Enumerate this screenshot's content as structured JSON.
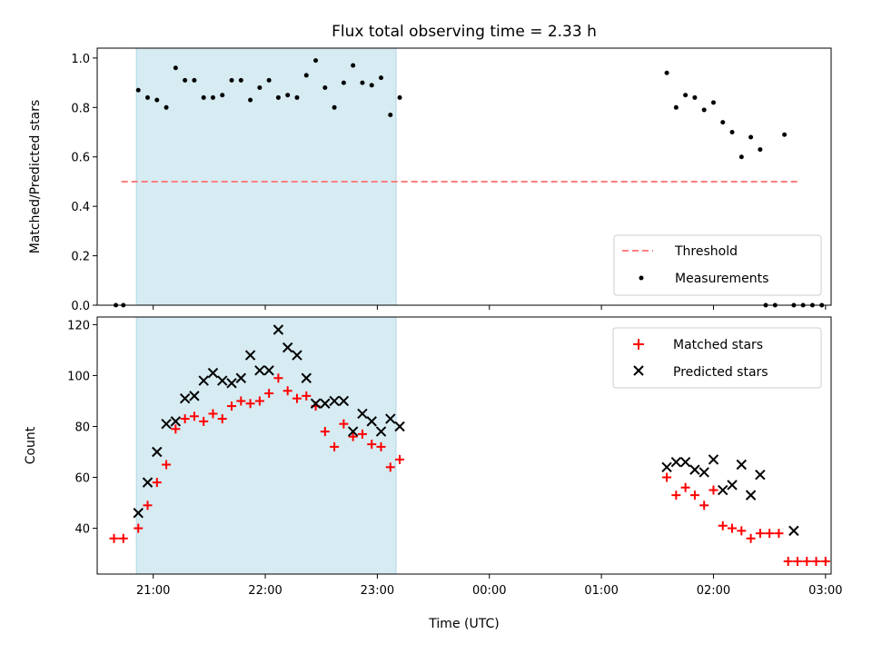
{
  "chart_data": [
    {
      "type": "scatter",
      "title": "Flux total observing time = 2.33 h",
      "xlabel": "",
      "ylabel": "Matched/Predicted stars",
      "xlim": [
        "20:30",
        "03:03"
      ],
      "ylim": [
        0,
        1.04
      ],
      "yticks": [
        "0.0",
        "0.2",
        "0.4",
        "0.6",
        "0.8",
        "1.0"
      ],
      "shaded_span": [
        "20:51",
        "23:10"
      ],
      "threshold": {
        "name": "Threshold",
        "y": 0.5,
        "x_start": "20:43",
        "x_end": "02:45",
        "color": "#ff7f7f",
        "style": "dashed"
      },
      "series": [
        {
          "name": "Measurements",
          "marker": "dot",
          "color": "#000000",
          "x": [
            "20:40",
            "20:44",
            "20:52",
            "20:57",
            "21:02",
            "21:07",
            "21:12",
            "21:17",
            "21:22",
            "21:27",
            "21:32",
            "21:37",
            "21:42",
            "21:47",
            "21:52",
            "21:57",
            "22:02",
            "22:07",
            "22:12",
            "22:17",
            "22:22",
            "22:27",
            "22:32",
            "22:37",
            "22:42",
            "22:47",
            "22:52",
            "22:57",
            "23:02",
            "23:07",
            "23:12",
            "01:35",
            "01:40",
            "01:45",
            "01:50",
            "01:55",
            "02:00",
            "02:05",
            "02:10",
            "02:15",
            "02:20",
            "02:25",
            "02:28",
            "02:33",
            "02:38",
            "02:43",
            "02:48",
            "02:53",
            "02:58"
          ],
          "y": [
            0,
            0,
            0.87,
            0.84,
            0.83,
            0.8,
            0.96,
            0.91,
            0.91,
            0.84,
            0.84,
            0.85,
            0.91,
            0.91,
            0.83,
            0.88,
            0.91,
            0.84,
            0.85,
            0.84,
            0.93,
            0.99,
            0.88,
            0.8,
            0.9,
            0.97,
            0.9,
            0.89,
            0.92,
            0.77,
            0.84,
            0.94,
            0.8,
            0.85,
            0.84,
            0.79,
            0.82,
            0.74,
            0.7,
            0.6,
            0.68,
            0.63,
            0,
            0,
            0.69,
            0,
            0,
            0,
            0
          ]
        }
      ]
    },
    {
      "type": "scatter",
      "title": "",
      "xlabel": "Time (UTC)",
      "ylabel": "Count",
      "xlim": [
        "20:30",
        "03:03"
      ],
      "ylim": [
        22,
        123
      ],
      "yticks": [
        "40",
        "60",
        "80",
        "100",
        "120"
      ],
      "xticks": [
        "21:00",
        "22:00",
        "23:00",
        "00:00",
        "01:00",
        "02:00",
        "03:00"
      ],
      "shaded_span": [
        "20:51",
        "23:10"
      ],
      "series": [
        {
          "name": "Matched stars",
          "marker": "plus",
          "color": "#ff0000",
          "x": [
            "20:39",
            "20:44",
            "20:52",
            "20:57",
            "21:02",
            "21:07",
            "21:12",
            "21:17",
            "21:22",
            "21:27",
            "21:32",
            "21:37",
            "21:42",
            "21:47",
            "21:52",
            "21:57",
            "22:02",
            "22:07",
            "22:12",
            "22:17",
            "22:22",
            "22:27",
            "22:32",
            "22:37",
            "22:42",
            "22:47",
            "22:52",
            "22:57",
            "23:02",
            "23:07",
            "23:12",
            "01:35",
            "01:40",
            "01:45",
            "01:50",
            "01:55",
            "02:00",
            "02:05",
            "02:10",
            "02:15",
            "02:20",
            "02:25",
            "02:30",
            "02:35",
            "02:40",
            "02:45",
            "02:50",
            "02:55",
            "03:00"
          ],
          "y": [
            36,
            36,
            40,
            49,
            58,
            65,
            79,
            83,
            84,
            82,
            85,
            83,
            88,
            90,
            89,
            90,
            93,
            99,
            94,
            91,
            92,
            88,
            78,
            72,
            81,
            76,
            77,
            73,
            72,
            64,
            67,
            60,
            53,
            56,
            53,
            49,
            55,
            41,
            40,
            39,
            36,
            38,
            38,
            38,
            27,
            27,
            27,
            27,
            27
          ]
        },
        {
          "name": "Predicted stars",
          "marker": "x",
          "color": "#000000",
          "x": [
            "20:52",
            "20:57",
            "21:02",
            "21:07",
            "21:12",
            "21:17",
            "21:22",
            "21:27",
            "21:32",
            "21:37",
            "21:42",
            "21:47",
            "21:52",
            "21:57",
            "22:02",
            "22:07",
            "22:12",
            "22:17",
            "22:22",
            "22:27",
            "22:32",
            "22:37",
            "22:42",
            "22:47",
            "22:52",
            "22:57",
            "23:02",
            "23:07",
            "23:12",
            "01:35",
            "01:40",
            "01:45",
            "01:50",
            "01:55",
            "02:00",
            "02:05",
            "02:10",
            "02:15",
            "02:20",
            "02:25",
            "02:43"
          ],
          "y": [
            46,
            58,
            70,
            81,
            82,
            91,
            92,
            98,
            101,
            98,
            97,
            99,
            108,
            102,
            102,
            118,
            111,
            108,
            99,
            89,
            89,
            90,
            90,
            78,
            85,
            82,
            78,
            83,
            80,
            64,
            66,
            66,
            63,
            62,
            67,
            55,
            57,
            65,
            53,
            61,
            39
          ]
        }
      ]
    }
  ]
}
